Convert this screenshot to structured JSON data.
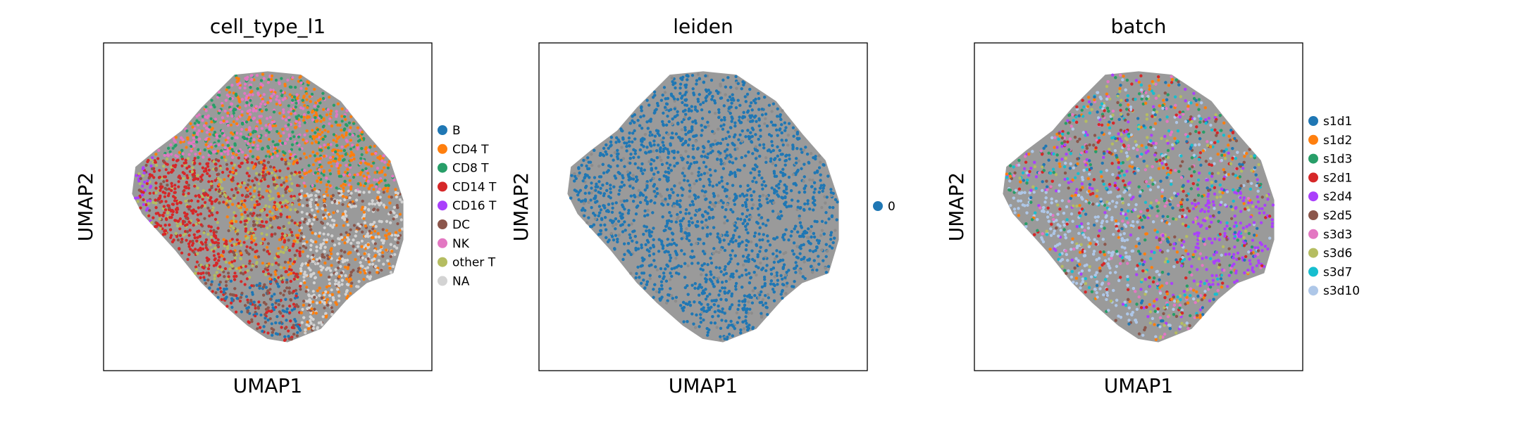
{
  "chart_data": [
    {
      "type": "scatter",
      "title": "cell_type_l1",
      "xlabel": "UMAP1",
      "ylabel": "UMAP2",
      "grid": false,
      "legend_placement": "right",
      "legend": [
        {
          "label": "B",
          "color": "#1f77b4"
        },
        {
          "label": "CD4 T",
          "color": "#ff7f0e"
        },
        {
          "label": "CD8 T",
          "color": "#279e68"
        },
        {
          "label": "CD14 T",
          "color": "#d62728"
        },
        {
          "label": "CD16 T",
          "color": "#aa40fc"
        },
        {
          "label": "DC",
          "color": "#8c564b"
        },
        {
          "label": "NK",
          "color": "#e377c2"
        },
        {
          "label": "other T",
          "color": "#b5bd61"
        },
        {
          "label": "NA",
          "color": "#d3d3d3"
        }
      ]
    },
    {
      "type": "scatter",
      "title": "leiden",
      "xlabel": "UMAP1",
      "ylabel": "UMAP2",
      "grid": false,
      "legend_placement": "right",
      "legend": [
        {
          "label": "0",
          "color": "#1f77b4"
        }
      ]
    },
    {
      "type": "scatter",
      "title": "batch",
      "xlabel": "UMAP1",
      "ylabel": "UMAP2",
      "grid": false,
      "legend_placement": "right",
      "legend": [
        {
          "label": "s1d1",
          "color": "#1f77b4"
        },
        {
          "label": "s1d2",
          "color": "#ff7f0e"
        },
        {
          "label": "s1d3",
          "color": "#279e68"
        },
        {
          "label": "s2d1",
          "color": "#d62728"
        },
        {
          "label": "s2d4",
          "color": "#aa40fc"
        },
        {
          "label": "s2d5",
          "color": "#8c564b"
        },
        {
          "label": "s3d3",
          "color": "#e377c2"
        },
        {
          "label": "s3d6",
          "color": "#b5bd61"
        },
        {
          "label": "s3d7",
          "color": "#17becf"
        },
        {
          "label": "s3d10",
          "color": "#aec7e8"
        }
      ]
    }
  ]
}
